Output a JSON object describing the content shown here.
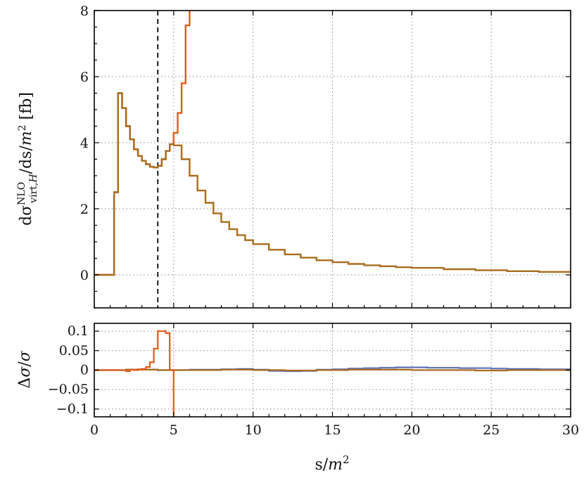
{
  "chart_data": [
    {
      "panel": "main",
      "type": "line",
      "ylabel": "dσvirt,HNLO/ds/m2 [fb]",
      "ylabel_parts": {
        "base": "dσ",
        "sup": "NLO",
        "sub": "virt,",
        "sub_ital": "H",
        "rest": "/ds/",
        "rest_ital": "m",
        "rest_sup": "2",
        "unit": " [fb]"
      },
      "xlim": [
        0,
        30
      ],
      "ylim": [
        -1,
        8
      ],
      "xticks": [
        "0",
        "5",
        "10",
        "15",
        "20",
        "25",
        "30"
      ],
      "yticks": [
        "0",
        "2",
        "4",
        "6",
        "8"
      ],
      "grid": true,
      "dashed_vline_x": 4,
      "series": [
        {
          "color": "#E05A1C",
          "x": [
            0,
            0.25,
            0.5,
            0.75,
            1.0,
            1.25,
            1.5,
            1.75,
            2.0,
            2.25,
            2.5,
            2.75,
            3.0,
            3.25,
            3.5,
            3.75,
            4.0,
            4.25,
            4.5,
            4.75,
            5.0,
            5.25,
            5.5,
            5.75,
            6.0
          ],
          "y": [
            0,
            0,
            0,
            0,
            0,
            2.5,
            5.5,
            5.05,
            4.5,
            4.1,
            3.8,
            3.6,
            3.45,
            3.35,
            3.27,
            3.25,
            3.3,
            3.5,
            3.75,
            3.95,
            4.3,
            4.9,
            5.8,
            7.55,
            8.3
          ]
        },
        {
          "color": "#A86C1E",
          "x": [
            0,
            1.0,
            1.25,
            1.5,
            1.75,
            2.0,
            2.25,
            2.5,
            2.75,
            3.0,
            3.25,
            3.5,
            3.75,
            4.0,
            4.25,
            4.5,
            4.75,
            5.0,
            5.5,
            6.0,
            6.5,
            7.0,
            7.5,
            8.0,
            8.5,
            9.0,
            9.5,
            10,
            11,
            12,
            13,
            14,
            15,
            16,
            17,
            18,
            19,
            20,
            22,
            24,
            26,
            28,
            30
          ],
          "y": [
            0,
            0,
            2.5,
            5.5,
            5.05,
            4.5,
            4.1,
            3.8,
            3.6,
            3.45,
            3.35,
            3.27,
            3.25,
            3.3,
            3.5,
            3.75,
            3.95,
            3.92,
            3.5,
            3.0,
            2.55,
            2.18,
            1.86,
            1.6,
            1.38,
            1.2,
            1.05,
            0.93,
            0.76,
            0.62,
            0.52,
            0.44,
            0.38,
            0.33,
            0.29,
            0.26,
            0.23,
            0.21,
            0.17,
            0.14,
            0.11,
            0.09,
            0.07
          ]
        }
      ]
    },
    {
      "panel": "ratio",
      "type": "line",
      "xlabel": "s/m2",
      "xlabel_parts": {
        "base": "s/",
        "ital": "m",
        "sup": "2"
      },
      "ylabel": "Δσ/σ",
      "ylabel_parts": {
        "a": "Δ",
        "b": "σ",
        "c": "/",
        "d": "σ"
      },
      "xlim": [
        0,
        30
      ],
      "ylim": [
        -0.12,
        0.12
      ],
      "xticks": [
        "0",
        "5",
        "10",
        "15",
        "20",
        "25",
        "30"
      ],
      "yticks": [
        "0.1",
        "0.05",
        "0",
        "−0.05",
        "−0.1"
      ],
      "ytick_values": [
        0.1,
        0.05,
        0,
        -0.05,
        -0.1
      ],
      "grid": true,
      "series": [
        {
          "color": "#5B6FB8",
          "x": [
            0,
            2,
            4,
            6,
            8,
            9,
            10,
            11,
            12,
            13,
            14,
            15,
            16,
            17,
            18,
            19,
            20,
            21,
            22,
            23,
            24,
            25,
            26,
            27,
            28,
            29,
            30
          ],
          "y": [
            0,
            0.001,
            0,
            0.001,
            0.002,
            0.003,
            0.001,
            -0.002,
            -0.003,
            -0.002,
            0.001,
            0.002,
            0.004,
            0.005,
            0.006,
            0.007,
            0.007,
            0.006,
            0.006,
            0.005,
            0.005,
            0.004,
            0.003,
            0.003,
            0.002,
            0.002,
            0.001
          ]
        },
        {
          "color": "#A86C1E",
          "x": [
            0,
            2,
            4,
            6,
            8,
            10,
            12,
            14,
            16,
            18,
            20,
            22,
            24,
            26,
            28,
            30
          ],
          "y": [
            0,
            0.001,
            0,
            0,
            0.001,
            0,
            -0.001,
            0,
            0.001,
            0.001,
            0,
            0,
            -0.001,
            0,
            0,
            -0.001
          ]
        },
        {
          "color": "#E05A1C",
          "x": [
            0,
            0.5,
            1.0,
            1.5,
            2.0,
            2.25,
            2.5,
            2.75,
            3.0,
            3.25,
            3.5,
            3.75,
            4.0,
            4.25,
            4.5,
            4.75,
            5.0
          ],
          "y": [
            0,
            0,
            0,
            0,
            -0.003,
            0.001,
            0,
            0.002,
            0.003,
            0.008,
            0.02,
            0.055,
            0.1,
            0.1,
            0.095,
            0,
            -0.13
          ]
        }
      ]
    }
  ]
}
